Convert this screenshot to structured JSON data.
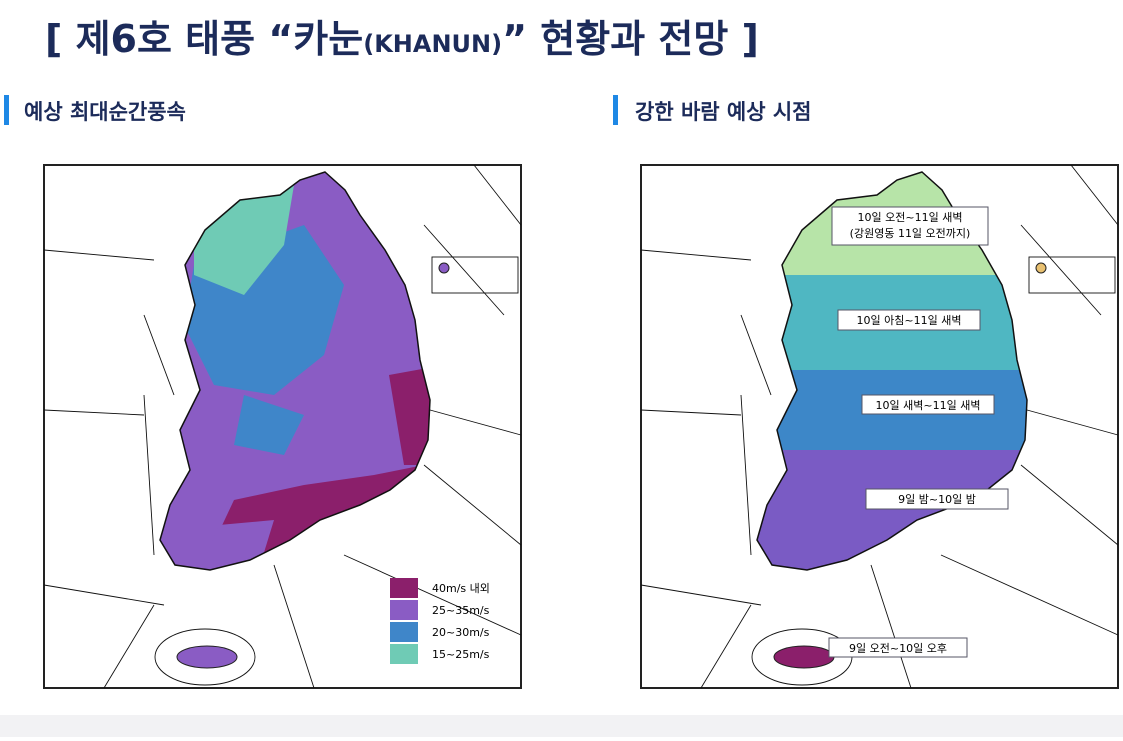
{
  "header": {
    "title": {
      "before": "[ 제6호 태풍 “카눈",
      "sub": "(KHANUN)",
      "after": "” 현황과 전망 ]"
    }
  },
  "panels": [
    {
      "heading": "예상 최대순간풍속",
      "legend": [
        {
          "label": "40m/s 내외",
          "color": "#8b1f6b"
        },
        {
          "label": "25~35m/s",
          "color": "#8a5cc4"
        },
        {
          "label": "20~30m/s",
          "color": "#3f86c9"
        },
        {
          "label": "15~25m/s",
          "color": "#6fcbb5"
        }
      ]
    },
    {
      "heading": "강한 바람 예상 시점",
      "labels": [
        [
          "10일 오전~11일 새벽",
          "(강원영동 11일 오전까지)"
        ],
        [
          "10일 아침~11일 새벽"
        ],
        [
          "10일 새벽~11일 새벽"
        ],
        [
          "9일 밤~10일 밤"
        ],
        [
          "9일 오전~10일 오후"
        ]
      ]
    }
  ]
}
